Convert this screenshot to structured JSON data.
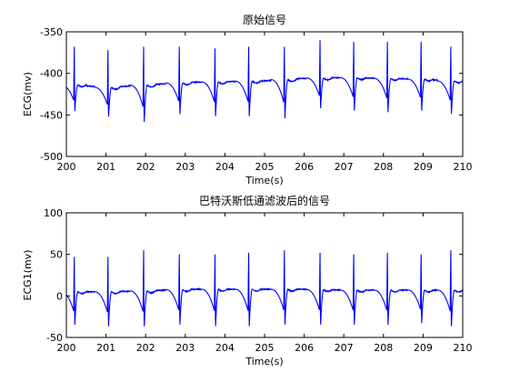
{
  "chart_data": [
    {
      "type": "line",
      "title": "原始信号",
      "xlabel": "Time(s)",
      "ylabel": "ECG(mv)",
      "xlim": [
        200,
        210
      ],
      "ylim": [
        -500,
        -350
      ],
      "xticks": [
        "200",
        "201",
        "202",
        "203",
        "204",
        "205",
        "206",
        "207",
        "208",
        "209",
        "210"
      ],
      "yticks": [
        "-500",
        "-450",
        "-400",
        "-350"
      ],
      "grid": false,
      "line_color": "#0000ff",
      "baseline": [
        [
          200.0,
          -413
        ],
        [
          201.0,
          -417
        ],
        [
          202.0,
          -414
        ],
        [
          203.0,
          -411
        ],
        [
          204.0,
          -410
        ],
        [
          205.0,
          -409
        ],
        [
          206.0,
          -406
        ],
        [
          207.0,
          -405
        ],
        [
          208.0,
          -406
        ],
        [
          209.0,
          -407
        ],
        [
          210.0,
          -410
        ]
      ],
      "beats": [
        {
          "t": 200.2,
          "r": -368,
          "s": -448
        },
        {
          "t": 201.05,
          "r": -372,
          "s": -455
        },
        {
          "t": 201.95,
          "r": -368,
          "s": -462
        },
        {
          "t": 202.85,
          "r": -368,
          "s": -452
        },
        {
          "t": 203.75,
          "r": -370,
          "s": -455
        },
        {
          "t": 204.6,
          "r": -368,
          "s": -455
        },
        {
          "t": 205.5,
          "r": -368,
          "s": -458
        },
        {
          "t": 206.4,
          "r": -360,
          "s": -445
        },
        {
          "t": 207.25,
          "r": -362,
          "s": -448
        },
        {
          "t": 208.1,
          "r": -362,
          "s": -450
        },
        {
          "t": 208.95,
          "r": -362,
          "s": -448
        },
        {
          "t": 209.7,
          "r": -368,
          "s": -452
        }
      ]
    },
    {
      "type": "line",
      "title": "巴特沃斯低通滤波后的信号",
      "xlabel": "Time(s)",
      "ylabel": "ECG1(mv)",
      "xlim": [
        200,
        210
      ],
      "ylim": [
        -50,
        100
      ],
      "xticks": [
        "200",
        "201",
        "202",
        "203",
        "204",
        "205",
        "206",
        "207",
        "208",
        "209",
        "210"
      ],
      "yticks": [
        "-50",
        "0",
        "50",
        "100"
      ],
      "grid": false,
      "line_color": "#0000ff",
      "baseline": [
        [
          200.0,
          5
        ],
        [
          201.0,
          5
        ],
        [
          202.0,
          6
        ],
        [
          203.0,
          8
        ],
        [
          204.0,
          8
        ],
        [
          205.0,
          8
        ],
        [
          206.0,
          8
        ],
        [
          207.0,
          7
        ],
        [
          208.0,
          7
        ],
        [
          209.0,
          7
        ],
        [
          210.0,
          7
        ]
      ],
      "beats": [
        {
          "t": 200.2,
          "r": 47,
          "s": -38
        },
        {
          "t": 201.05,
          "r": 47,
          "s": -40
        },
        {
          "t": 201.95,
          "r": 55,
          "s": -40
        },
        {
          "t": 202.85,
          "r": 50,
          "s": -38
        },
        {
          "t": 203.75,
          "r": 50,
          "s": -40
        },
        {
          "t": 204.6,
          "r": 52,
          "s": -40
        },
        {
          "t": 205.5,
          "r": 55,
          "s": -38
        },
        {
          "t": 206.4,
          "r": 52,
          "s": -38
        },
        {
          "t": 207.25,
          "r": 50,
          "s": -38
        },
        {
          "t": 208.1,
          "r": 52,
          "s": -38
        },
        {
          "t": 208.95,
          "r": 50,
          "s": -36
        },
        {
          "t": 209.7,
          "r": 55,
          "s": -40
        }
      ]
    }
  ]
}
